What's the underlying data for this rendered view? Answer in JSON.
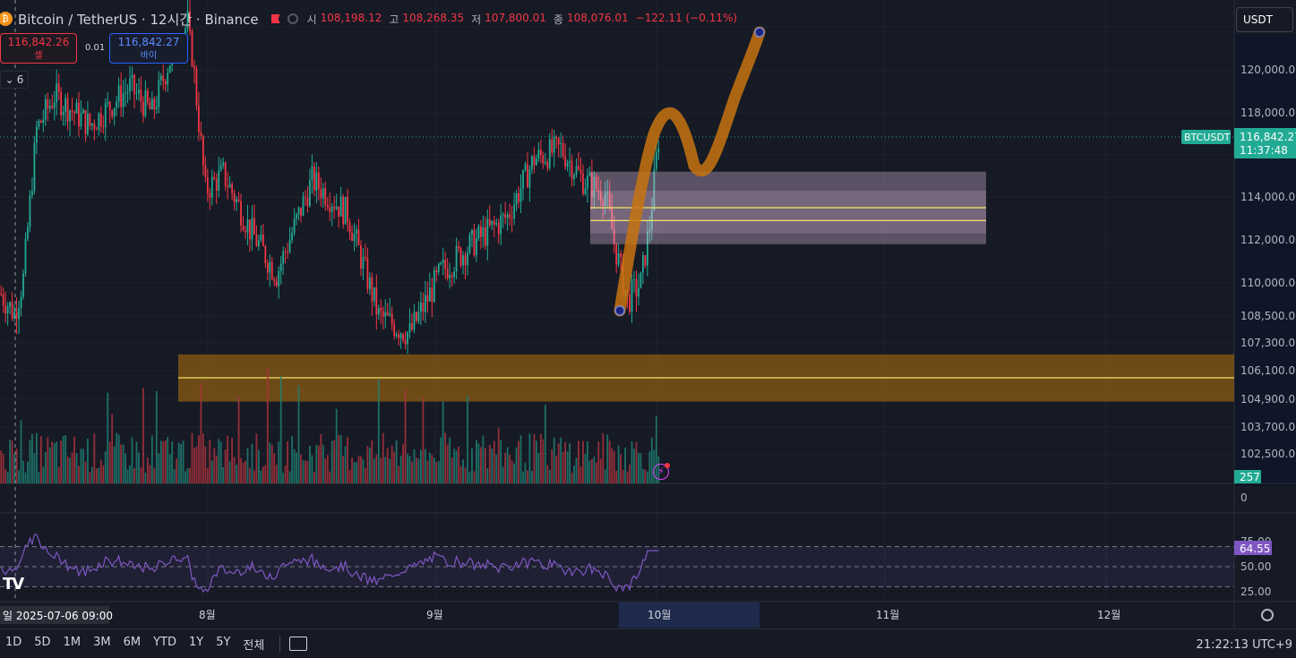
{
  "header": {
    "coin_icon": "bitcoin-icon",
    "title": "Bitcoin / TetherUS · 12시간 · Binance",
    "ohlc": [
      {
        "key": "시",
        "value": "108,198.12"
      },
      {
        "key": "고",
        "value": "108,268.35"
      },
      {
        "key": "저",
        "value": "107,800.01"
      },
      {
        "key": "종",
        "value": "108,076.01"
      }
    ],
    "change": "−122.11 (−0.11%)"
  },
  "trade": {
    "sell_price": "116,842.26",
    "sell_label": "셀",
    "spread": "0.01",
    "buy_price": "116,842.27",
    "buy_label": "바이"
  },
  "legend_toggle": "6",
  "currency_select": "USDT",
  "price_axis": {
    "ticks": [
      "120,000.00",
      "118,000.00",
      "114,000.00",
      "112,000.00",
      "110,000.00",
      "108,500.00",
      "107,300.00",
      "106,100.00",
      "104,900.00",
      "103,700.00",
      "102,500.00"
    ],
    "current_symbol": "BTCUSDT",
    "current_price": "116,842.27",
    "countdown": "11:37:48",
    "volume_label": "257",
    "volume_zero": "0"
  },
  "rsi": {
    "ticks": [
      "75.00",
      "50.00",
      "25.00"
    ],
    "current": "64.55"
  },
  "time_axis": {
    "crosshair_label": "일 2025-07-06   09:00",
    "months": [
      "8월",
      "9월",
      "10월",
      "11월",
      "12월"
    ]
  },
  "colors": {
    "up": "#22ab94",
    "down": "#f23645",
    "rsi": "#7e57c2",
    "box_fill": "#f0c8e8",
    "band_fill": "#b8730c",
    "brush": "#c77410"
  },
  "timeframes": [
    "1D",
    "5D",
    "1M",
    "3M",
    "6M",
    "YTD",
    "1Y",
    "5Y",
    "전체"
  ],
  "clock": "21:22:13 UTC+9",
  "chart_data": {
    "type": "candlestick",
    "interval": "12시간",
    "series_name": "Bitcoin / TetherUS",
    "x": [
      "2025-07-06",
      "2025-08",
      "2025-09",
      "2025-10",
      "2025-11",
      "2025-12"
    ],
    "ylim": [
      101500,
      122800
    ],
    "control_points": [
      [
        0,
        109500
      ],
      [
        6,
        108600
      ],
      [
        10,
        110200
      ],
      [
        16,
        117200
      ],
      [
        24,
        118800
      ],
      [
        40,
        117400
      ],
      [
        58,
        119200
      ],
      [
        68,
        118000
      ],
      [
        80,
        121800
      ],
      [
        84,
        123000
      ],
      [
        92,
        114300
      ],
      [
        100,
        115100
      ],
      [
        112,
        112500
      ],
      [
        124,
        110400
      ],
      [
        140,
        114800
      ],
      [
        156,
        113200
      ],
      [
        170,
        108500
      ],
      [
        184,
        107700
      ],
      [
        198,
        110500
      ],
      [
        212,
        111800
      ],
      [
        228,
        113100
      ],
      [
        240,
        115800
      ],
      [
        252,
        116300
      ],
      [
        262,
        114800
      ],
      [
        272,
        114200
      ],
      [
        276,
        111900
      ],
      [
        282,
        109200
      ],
      [
        288,
        110000
      ],
      [
        292,
        112700
      ],
      [
        296,
        116800
      ]
    ],
    "annotations": {
      "rect_zone": [
        111800,
        115200
      ],
      "rect_lines": [
        113500,
        112900
      ],
      "horizontal_band": [
        104800,
        106800
      ],
      "band_line": [
        105800
      ]
    },
    "rsi_last": 64.55,
    "volume_last": 257
  }
}
